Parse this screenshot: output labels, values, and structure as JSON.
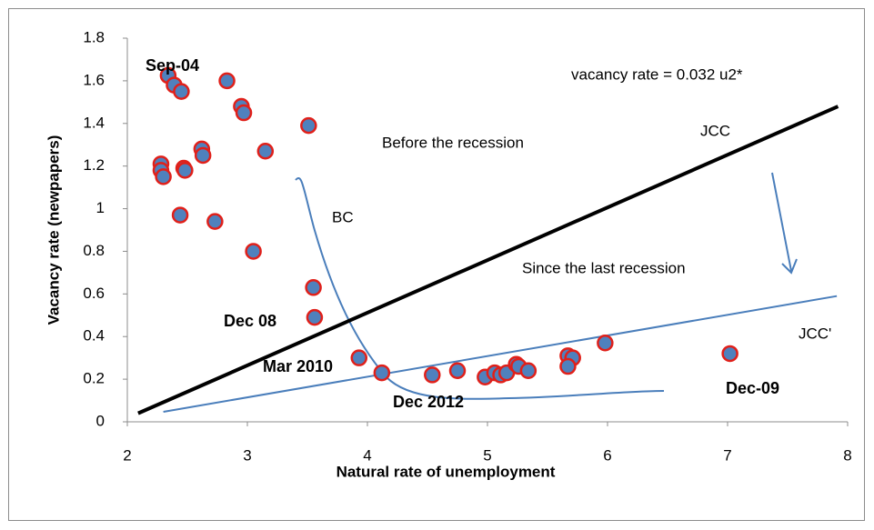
{
  "chart_data": {
    "type": "scatter",
    "xlabel": "Natural rate of unemployment",
    "ylabel": "Vacancy rate (newpapers)",
    "x": [
      2.34,
      2.39,
      2.45,
      2.83,
      2.95,
      2.97,
      3.51,
      3.15,
      2.62,
      2.63,
      2.28,
      2.28,
      2.3,
      2.47,
      2.48,
      2.44,
      2.73,
      3.05,
      3.55,
      3.56,
      3.93,
      4.12,
      4.54,
      4.75,
      4.98,
      5.06,
      5.11,
      5.16,
      5.24,
      5.26,
      5.34,
      5.67,
      5.71,
      5.67,
      5.98,
      7.02
    ],
    "values": [
      1.625,
      1.58,
      1.55,
      1.6,
      1.48,
      1.45,
      1.39,
      1.27,
      1.28,
      1.25,
      1.21,
      1.18,
      1.15,
      1.19,
      1.18,
      0.97,
      0.94,
      0.8,
      0.63,
      0.49,
      0.3,
      0.23,
      0.22,
      0.24,
      0.21,
      0.23,
      0.22,
      0.23,
      0.27,
      0.26,
      0.24,
      0.31,
      0.3,
      0.26,
      0.37,
      0.32
    ],
    "color": "#4f81bd",
    "edge_color": "#e0201a",
    "lines": [
      {
        "x": [
          2.09,
          7.92
        ],
        "values": [
          0.04,
          1.48
        ],
        "color": "#000000"
      },
      {
        "x": [
          2.3,
          7.91
        ],
        "values": [
          0.047,
          0.59
        ],
        "color": "#4a7ebb"
      }
    ],
    "annotations": [
      "Sep-04",
      "vacancy rate = 0.032 u2*",
      "JCC",
      "Before the recession",
      "BC",
      "Since the last recession",
      "JCC'",
      "Dec 08",
      "Mar 2010",
      "Dec 2012",
      "Dec-09"
    ],
    "xlim": [
      2,
      8
    ],
    "xticks": [
      2,
      3,
      4,
      5,
      6,
      7,
      8
    ],
    "ylim": [
      0,
      1.8
    ],
    "yticks": [
      0,
      0.2,
      0.4,
      0.6,
      0.8,
      1,
      1.2,
      1.4,
      1.6,
      1.8
    ],
    "grid": false
  }
}
